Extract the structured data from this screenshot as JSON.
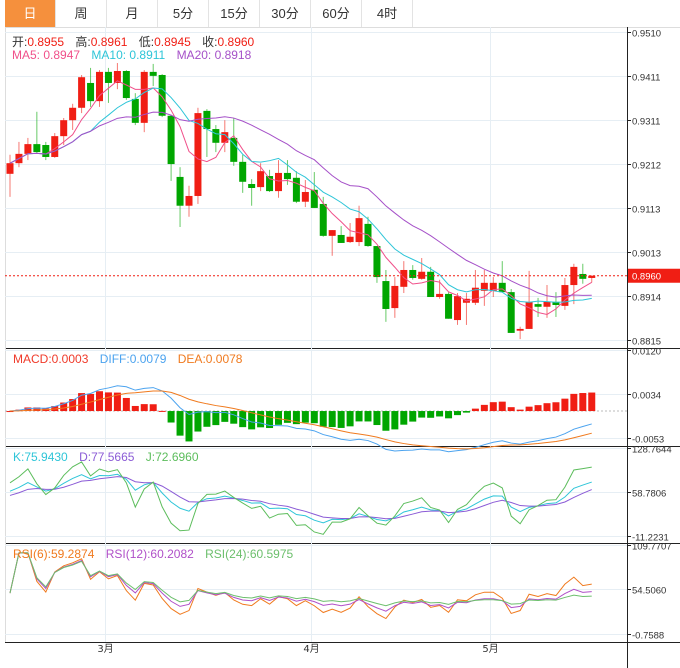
{
  "tabs": [
    "日",
    "周",
    "月",
    "5分",
    "15分",
    "30分",
    "60分",
    "4时"
  ],
  "active_tab": 0,
  "ohlc_legend": {
    "open_label": "开:",
    "open": "0.8955",
    "high_label": "高:",
    "high": "0.8961",
    "low_label": "低:",
    "low": "0.8945",
    "close_label": "收:",
    "close": "0.8960"
  },
  "ma_legend": {
    "ma5": "MA5: 0.8947",
    "ma10": "MA10: 0.8911",
    "ma20": "MA20: 0.8918"
  },
  "macd_legend": {
    "macd": "MACD:0.0003",
    "diff": "DIFF:0.0079",
    "dea": "DEA:0.0078"
  },
  "kdj_legend": {
    "k": "K:75.9430",
    "d": "D:77.5665",
    "j": "J:72.6960"
  },
  "rsi_legend": {
    "rsi6": "RSI(6):59.2874",
    "rsi12": "RSI(12):60.2082",
    "rsi24": "RSI(24):60.5975"
  },
  "current_price": "0.8960",
  "colors": {
    "up": "#f01e14",
    "down": "#00a600",
    "ma5": "#f0508a",
    "ma10": "#2ec5d8",
    "ma20": "#a550c8",
    "diff": "#4ba3ef",
    "dea": "#f07a1e",
    "k": "#2ec5d8",
    "d": "#8b5bd6",
    "j": "#5cbd5c",
    "rsi6": "#f07a1e",
    "rsi12": "#b050c8",
    "rsi24": "#6cbf6c",
    "active_tab": "#f5903d"
  },
  "chart_data": {
    "type": "candlestick",
    "x_ticks": [
      "3月",
      "4月",
      "5月"
    ],
    "price_axis": {
      "ticks": [
        "0.9510",
        "0.9411",
        "0.9311",
        "0.9212",
        "0.9113",
        "0.9013",
        "0.8914",
        "0.8815"
      ],
      "range": [
        0.8815,
        0.951
      ]
    },
    "macd_axis": {
      "ticks": [
        "0.0120",
        "0.0034",
        "-0.0053"
      ],
      "range": [
        -0.0053,
        0.012
      ]
    },
    "kdj_axis": {
      "ticks": [
        "128.7644",
        "58.7806",
        "-11.2231"
      ],
      "range": [
        -11.2231,
        128.7644
      ]
    },
    "rsi_axis": {
      "ticks": [
        "109.7707",
        "54.5060",
        "-0.7588"
      ],
      "range": [
        -0.7588,
        109.7707
      ]
    },
    "candles": [
      [
        0.919,
        0.9233,
        0.9138,
        0.9214
      ],
      [
        0.9214,
        0.9262,
        0.9205,
        0.9235
      ],
      [
        0.9235,
        0.9271,
        0.9221,
        0.9257
      ],
      [
        0.9257,
        0.933,
        0.9237,
        0.9239
      ],
      [
        0.9255,
        0.9262,
        0.9221,
        0.9228
      ],
      [
        0.9228,
        0.9282,
        0.9226,
        0.9275
      ],
      [
        0.9275,
        0.9316,
        0.9255,
        0.9311
      ],
      [
        0.9311,
        0.9348,
        0.9289,
        0.9339
      ],
      [
        0.9339,
        0.9413,
        0.9327,
        0.9408
      ],
      [
        0.9395,
        0.9429,
        0.9341,
        0.9354
      ],
      [
        0.9354,
        0.9424,
        0.9341,
        0.942
      ],
      [
        0.942,
        0.9429,
        0.935,
        0.9395
      ],
      [
        0.9395,
        0.944,
        0.9381,
        0.9422
      ],
      [
        0.9422,
        0.9424,
        0.9357,
        0.9361
      ],
      [
        0.9359,
        0.9372,
        0.93,
        0.9305
      ],
      [
        0.9305,
        0.9424,
        0.9284,
        0.942
      ],
      [
        0.942,
        0.9438,
        0.9388,
        0.9411
      ],
      [
        0.9413,
        0.9415,
        0.9318,
        0.9321
      ],
      [
        0.9321,
        0.9323,
        0.9174,
        0.9212
      ],
      [
        0.9183,
        0.9205,
        0.907,
        0.9118
      ],
      [
        0.9118,
        0.9163,
        0.9093,
        0.914
      ],
      [
        0.914,
        0.9339,
        0.9122,
        0.9327
      ],
      [
        0.9332,
        0.9336,
        0.9228,
        0.9291
      ],
      [
        0.9291,
        0.93,
        0.9239,
        0.926
      ],
      [
        0.926,
        0.9311,
        0.9239,
        0.9284
      ],
      [
        0.9271,
        0.9316,
        0.9208,
        0.9217
      ],
      [
        0.9217,
        0.9233,
        0.9147,
        0.9172
      ],
      [
        0.9167,
        0.9178,
        0.9118,
        0.9158
      ],
      [
        0.916,
        0.9214,
        0.9151,
        0.9196
      ],
      [
        0.9185,
        0.9199,
        0.9149,
        0.9151
      ],
      [
        0.9151,
        0.9221,
        0.9136,
        0.9192
      ],
      [
        0.9192,
        0.9221,
        0.9165,
        0.9178
      ],
      [
        0.9181,
        0.9196,
        0.9124,
        0.9127
      ],
      [
        0.9127,
        0.9176,
        0.9115,
        0.9149
      ],
      [
        0.9154,
        0.9194,
        0.9113,
        0.9113
      ],
      [
        0.9122,
        0.9138,
        0.9048,
        0.905
      ],
      [
        0.905,
        0.9063,
        0.9005,
        0.9063
      ],
      [
        0.9052,
        0.9072,
        0.9034,
        0.9034
      ],
      [
        0.9036,
        0.9079,
        0.9034,
        0.9048
      ],
      [
        0.9036,
        0.9118,
        0.9027,
        0.909
      ],
      [
        0.9077,
        0.9093,
        0.9025,
        0.9027
      ],
      [
        0.9027,
        0.9027,
        0.8944,
        0.8957
      ],
      [
        0.8948,
        0.8973,
        0.8856,
        0.8885
      ],
      [
        0.8887,
        0.8957,
        0.8865,
        0.8937
      ],
      [
        0.8935,
        0.8993,
        0.8921,
        0.8973
      ],
      [
        0.8973,
        0.8984,
        0.8951,
        0.8955
      ],
      [
        0.8953,
        0.9,
        0.8951,
        0.8969
      ],
      [
        0.8969,
        0.898,
        0.8912,
        0.8912
      ],
      [
        0.8912,
        0.8951,
        0.8908,
        0.8919
      ],
      [
        0.8919,
        0.8923,
        0.8863,
        0.8863
      ],
      [
        0.886,
        0.8921,
        0.8849,
        0.8914
      ],
      [
        0.8899,
        0.8921,
        0.8849,
        0.8908
      ],
      [
        0.8899,
        0.8973,
        0.8894,
        0.8933
      ],
      [
        0.8926,
        0.8973,
        0.8892,
        0.8944
      ],
      [
        0.8926,
        0.8957,
        0.8912,
        0.8944
      ],
      [
        0.8944,
        0.8993,
        0.8923,
        0.8923
      ],
      [
        0.8923,
        0.893,
        0.8831,
        0.8831
      ],
      [
        0.8836,
        0.8845,
        0.8817,
        0.884
      ],
      [
        0.884,
        0.8971,
        0.884,
        0.8901
      ],
      [
        0.8896,
        0.891,
        0.8867,
        0.889
      ],
      [
        0.889,
        0.8939,
        0.8865,
        0.8901
      ],
      [
        0.8901,
        0.8923,
        0.8867,
        0.8894
      ],
      [
        0.8892,
        0.8955,
        0.8883,
        0.8939
      ],
      [
        0.8939,
        0.8987,
        0.8896,
        0.898
      ],
      [
        0.8964,
        0.8987,
        0.8942,
        0.8953
      ],
      [
        0.8955,
        0.8961,
        0.8945,
        0.896
      ]
    ]
  }
}
